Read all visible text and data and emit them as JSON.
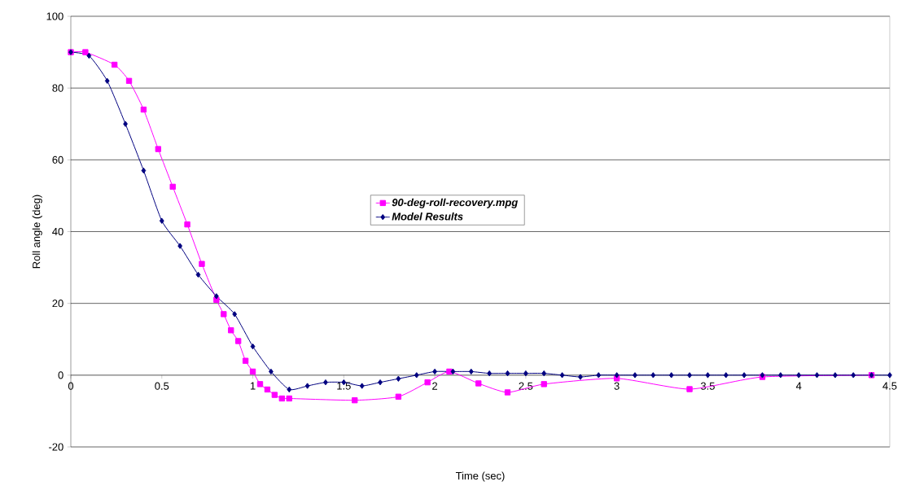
{
  "chart_data": {
    "type": "line",
    "xlabel": "Time (sec)",
    "ylabel": "Roll angle (deg)",
    "xlim": [
      0,
      4.5
    ],
    "ylim": [
      -20,
      100
    ],
    "xticks": [
      0,
      0.5,
      1,
      1.5,
      2,
      2.5,
      3,
      3.5,
      4,
      4.5
    ],
    "yticks": [
      -20,
      0,
      20,
      40,
      60,
      80,
      100
    ],
    "grid": "y",
    "legend": "center",
    "line_style": "solid",
    "series": [
      {
        "name": "90-deg-roll-recovery.mpg",
        "color": "#ff00ff",
        "marker": "square",
        "x": [
          0,
          0.08,
          0.24,
          0.32,
          0.4,
          0.48,
          0.56,
          0.64,
          0.72,
          0.8,
          0.84,
          0.88,
          0.92,
          0.96,
          1.0,
          1.04,
          1.08,
          1.12,
          1.16,
          1.2,
          1.56,
          1.8,
          1.96,
          2.08,
          2.24,
          2.4,
          2.6,
          3.0,
          3.4,
          3.8,
          4.4
        ],
        "values": [
          90,
          90,
          86.5,
          82,
          74,
          63,
          52.5,
          42,
          31,
          21,
          17,
          12.5,
          9.5,
          4,
          1,
          -2.5,
          -4,
          -5.5,
          -6.5,
          -6.5,
          -7,
          -6,
          -2,
          1,
          -2.3,
          -4.8,
          -2.5,
          -0.9,
          -3.9,
          -0.5,
          0
        ]
      },
      {
        "name": "Model Results",
        "color": "#000080",
        "marker": "diamond",
        "x": [
          0,
          0.1,
          0.2,
          0.3,
          0.4,
          0.5,
          0.6,
          0.7,
          0.8,
          0.9,
          1.0,
          1.1,
          1.2,
          1.3,
          1.4,
          1.5,
          1.6,
          1.7,
          1.8,
          1.9,
          2.0,
          2.1,
          2.2,
          2.3,
          2.4,
          2.5,
          2.6,
          2.7,
          2.8,
          2.9,
          3.0,
          3.1,
          3.2,
          3.3,
          3.4,
          3.5,
          3.6,
          3.7,
          3.8,
          3.9,
          4.0,
          4.1,
          4.2,
          4.3,
          4.4,
          4.5
        ],
        "values": [
          90,
          89,
          82,
          70,
          57,
          43,
          36,
          28,
          22,
          17,
          8,
          1,
          -4,
          -3,
          -2,
          -2,
          -3,
          -2,
          -1,
          0,
          1,
          1,
          1,
          0.5,
          0.5,
          0.5,
          0.5,
          0,
          -0.5,
          0,
          0,
          0,
          0,
          0,
          0,
          0,
          0,
          0,
          0,
          0,
          0,
          0,
          0,
          0,
          0,
          0
        ]
      }
    ]
  }
}
